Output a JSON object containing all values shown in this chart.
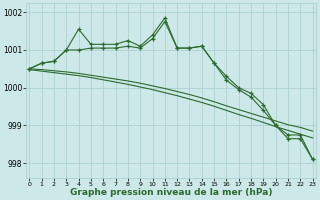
{
  "line1": {
    "x": [
      0,
      1,
      2,
      3,
      4,
      5,
      6,
      7,
      8,
      9,
      10,
      11,
      12,
      13,
      14,
      15,
      16,
      17,
      18,
      19,
      20,
      21,
      22,
      23
    ],
    "y": [
      1000.5,
      1000.65,
      1000.7,
      1001.0,
      1001.55,
      1001.15,
      1001.15,
      1001.15,
      1001.25,
      1001.1,
      1001.4,
      1001.85,
      1001.05,
      1001.05,
      1001.1,
      1000.65,
      1000.3,
      1000.0,
      999.85,
      999.55,
      999.0,
      998.75,
      998.75,
      998.1
    ]
  },
  "line2": {
    "x": [
      0,
      1,
      2,
      3,
      4,
      5,
      6,
      7,
      8,
      9,
      10,
      11,
      12,
      13,
      14,
      15,
      16,
      17,
      18,
      19,
      20,
      21,
      22,
      23
    ],
    "y": [
      1000.5,
      1000.65,
      1000.7,
      1001.0,
      1001.0,
      1001.05,
      1001.05,
      1001.05,
      1001.1,
      1001.05,
      1001.3,
      1001.75,
      1001.05,
      1001.05,
      1001.1,
      1000.65,
      1000.2,
      999.95,
      999.75,
      999.4,
      999.0,
      998.65,
      998.65,
      998.1
    ]
  },
  "line3": {
    "x": [
      0,
      1,
      2,
      3,
      4,
      5,
      6,
      7,
      8,
      9,
      10,
      11,
      12,
      13,
      14,
      15,
      16,
      17,
      18,
      19,
      20,
      21,
      22,
      23
    ],
    "y": [
      1000.5,
      1000.48,
      1000.45,
      1000.42,
      1000.38,
      1000.33,
      1000.28,
      1000.23,
      1000.18,
      1000.12,
      1000.05,
      999.98,
      999.9,
      999.82,
      999.73,
      999.63,
      999.52,
      999.42,
      999.32,
      999.22,
      999.12,
      999.02,
      998.95,
      998.85
    ]
  },
  "line4": {
    "x": [
      0,
      1,
      2,
      3,
      4,
      5,
      6,
      7,
      8,
      9,
      10,
      11,
      12,
      13,
      14,
      15,
      16,
      17,
      18,
      19,
      20,
      21,
      22,
      23
    ],
    "y": [
      1000.48,
      1000.44,
      1000.4,
      1000.36,
      1000.32,
      1000.27,
      1000.21,
      1000.15,
      1000.09,
      1000.02,
      999.95,
      999.87,
      999.79,
      999.7,
      999.61,
      999.51,
      999.4,
      999.29,
      999.19,
      999.08,
      998.97,
      998.87,
      998.77,
      998.67
    ]
  },
  "color": "#2d6a2d",
  "bg_color": "#cce8e8",
  "grid_color": "#aacccc",
  "xlabel": "Graphe pression niveau de la mer (hPa)",
  "ylim": [
    997.6,
    1002.25
  ],
  "xlim": [
    -0.3,
    23.3
  ],
  "yticks": [
    998,
    999,
    1000,
    1001,
    1002
  ],
  "xticks": [
    0,
    1,
    2,
    3,
    4,
    5,
    6,
    7,
    8,
    9,
    10,
    11,
    12,
    13,
    14,
    15,
    16,
    17,
    18,
    19,
    20,
    21,
    22,
    23
  ]
}
